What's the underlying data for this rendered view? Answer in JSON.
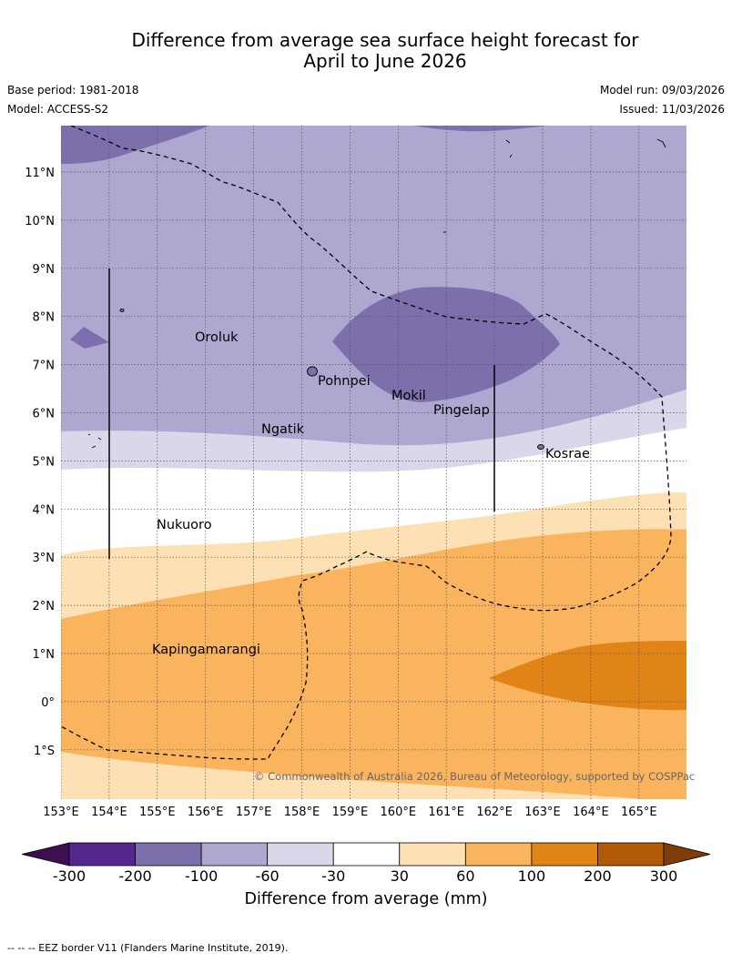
{
  "title": {
    "line1": "Difference from average sea surface height forecast for",
    "line2": "April to June 2026"
  },
  "meta": {
    "base_period": "Base period: 1981-2018",
    "model": "Model: ACCESS-S2",
    "model_run": "Model run: 09/03/2026",
    "issued": "Issued: 11/03/2026"
  },
  "map": {
    "lat_labels": [
      "11°N",
      "10°N",
      "9°N",
      "8°N",
      "7°N",
      "6°N",
      "5°N",
      "4°N",
      "3°N",
      "2°N",
      "1°N",
      "0°",
      "1°S"
    ],
    "lon_labels": [
      "153°E",
      "154°E",
      "155°E",
      "156°E",
      "157°E",
      "158°E",
      "159°E",
      "160°E",
      "161°E",
      "162°E",
      "163°E",
      "164°E",
      "165°E"
    ],
    "places": [
      {
        "name": "Oroluk"
      },
      {
        "name": "Pohnpei"
      },
      {
        "name": "Mokil"
      },
      {
        "name": "Pingelap"
      },
      {
        "name": "Ngatik"
      },
      {
        "name": "Kosrae"
      },
      {
        "name": "Nukuoro"
      },
      {
        "name": "Kapingamarangi"
      }
    ],
    "copyright": "© Commonwealth of Australia 2026, Bureau of Meteorology, supported by COSPPac"
  },
  "colorbar": {
    "title": "Difference from average (mm)",
    "ticks": [
      "-300",
      "-200",
      "-100",
      "-60",
      "-30",
      "30",
      "60",
      "100",
      "200",
      "300"
    ],
    "colors": {
      "below_minus300": "#3b0f50",
      "minus300_minus200": "#54278f",
      "minus200_minus100": "#7d6fac",
      "minus100_minus60": "#aea8d0",
      "minus60_minus30": "#d8d8ea",
      "minus30_30": "#ffffff",
      "p30_60": "#fde0b4",
      "p60_100": "#fbb45e",
      "p100_200": "#e18417",
      "p200_300": "#b15a06",
      "above_300": "#7f3b08"
    }
  },
  "footer": "--  --  -- EEZ border V11 (Flanders Marine Institute, 2019)."
}
